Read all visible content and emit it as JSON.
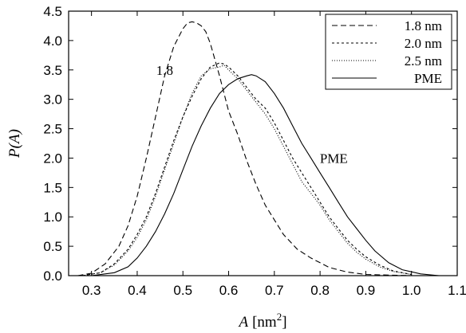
{
  "chart_data": {
    "type": "line",
    "title": "",
    "xlabel_main": "A",
    "xlabel_unit": "[nm",
    "xlabel_sup": "2",
    "xlabel_close": "]",
    "ylabel_main": "P",
    "ylabel_arg": "(A)",
    "xlim": [
      0.25,
      1.1
    ],
    "ylim": [
      0,
      4.5
    ],
    "xticks": [
      0.3,
      0.4,
      0.5,
      0.6,
      0.7,
      0.8,
      0.9,
      1.0,
      1.1
    ],
    "xtick_labels": [
      "0.3",
      "0.4",
      "0.5",
      "0.6",
      "0.7",
      "0.8",
      "0.9",
      "1.0",
      "1.1"
    ],
    "yticks": [
      0.0,
      0.5,
      1.0,
      1.5,
      2.0,
      2.5,
      3.0,
      3.5,
      4.0,
      4.5
    ],
    "ytick_labels": [
      "0.0",
      "0.5",
      "1.0",
      "1.5",
      "2.0",
      "2.5",
      "3.0",
      "3.5",
      "4.0",
      "4.5"
    ],
    "grid": false,
    "legend_position": "top-right",
    "series": [
      {
        "name": "1.8 nm",
        "style": "dashed",
        "x": [
          0.27,
          0.3,
          0.33,
          0.36,
          0.38,
          0.4,
          0.42,
          0.44,
          0.46,
          0.48,
          0.5,
          0.51,
          0.52,
          0.53,
          0.54,
          0.55,
          0.56,
          0.58,
          0.6,
          0.62,
          0.64,
          0.66,
          0.68,
          0.7,
          0.72,
          0.75,
          0.78,
          0.82,
          0.86,
          0.9,
          0.95,
          1.0
        ],
        "y": [
          0.0,
          0.04,
          0.2,
          0.5,
          0.85,
          1.35,
          2.0,
          2.7,
          3.4,
          3.9,
          4.2,
          4.3,
          4.32,
          4.3,
          4.25,
          4.15,
          3.95,
          3.4,
          2.8,
          2.4,
          1.95,
          1.55,
          1.2,
          0.95,
          0.7,
          0.45,
          0.3,
          0.14,
          0.06,
          0.02,
          0.01,
          0.0
        ]
      },
      {
        "name": "2.0 nm",
        "style": "short-dashed",
        "x": [
          0.28,
          0.32,
          0.35,
          0.38,
          0.4,
          0.42,
          0.44,
          0.46,
          0.48,
          0.5,
          0.52,
          0.54,
          0.56,
          0.58,
          0.59,
          0.6,
          0.62,
          0.64,
          0.66,
          0.68,
          0.7,
          0.72,
          0.74,
          0.76,
          0.78,
          0.8,
          0.82,
          0.84,
          0.86,
          0.88,
          0.9,
          0.93,
          0.96,
          1.0
        ],
        "y": [
          0.0,
          0.05,
          0.2,
          0.45,
          0.7,
          1.0,
          1.4,
          1.85,
          2.3,
          2.7,
          3.05,
          3.35,
          3.55,
          3.62,
          3.6,
          3.55,
          3.4,
          3.2,
          3.0,
          2.85,
          2.6,
          2.3,
          2.0,
          1.75,
          1.5,
          1.25,
          1.0,
          0.8,
          0.6,
          0.45,
          0.32,
          0.18,
          0.08,
          0.02
        ]
      },
      {
        "name": "2.5 nm",
        "style": "dotted",
        "x": [
          0.28,
          0.32,
          0.35,
          0.38,
          0.4,
          0.42,
          0.44,
          0.46,
          0.48,
          0.5,
          0.52,
          0.54,
          0.56,
          0.58,
          0.59,
          0.6,
          0.62,
          0.64,
          0.66,
          0.68,
          0.7,
          0.72,
          0.74,
          0.76,
          0.78,
          0.8,
          0.82,
          0.84,
          0.86,
          0.88,
          0.9,
          0.93,
          0.96,
          1.0
        ],
        "y": [
          0.0,
          0.05,
          0.18,
          0.42,
          0.65,
          0.95,
          1.35,
          1.8,
          2.25,
          2.7,
          3.1,
          3.4,
          3.52,
          3.55,
          3.58,
          3.5,
          3.35,
          3.15,
          2.95,
          2.75,
          2.5,
          2.2,
          1.9,
          1.6,
          1.4,
          1.2,
          0.95,
          0.75,
          0.55,
          0.4,
          0.28,
          0.15,
          0.07,
          0.02
        ]
      },
      {
        "name": "PME",
        "style": "solid",
        "x": [
          0.3,
          0.35,
          0.38,
          0.4,
          0.42,
          0.44,
          0.46,
          0.48,
          0.5,
          0.52,
          0.54,
          0.56,
          0.58,
          0.6,
          0.62,
          0.64,
          0.65,
          0.66,
          0.68,
          0.7,
          0.72,
          0.74,
          0.76,
          0.78,
          0.8,
          0.82,
          0.84,
          0.86,
          0.88,
          0.9,
          0.92,
          0.95,
          0.98,
          1.02,
          1.06
        ],
        "y": [
          0.0,
          0.05,
          0.15,
          0.3,
          0.5,
          0.75,
          1.05,
          1.4,
          1.8,
          2.2,
          2.55,
          2.85,
          3.1,
          3.25,
          3.35,
          3.4,
          3.42,
          3.4,
          3.3,
          3.1,
          2.85,
          2.55,
          2.25,
          2.0,
          1.75,
          1.5,
          1.25,
          1.0,
          0.8,
          0.6,
          0.42,
          0.22,
          0.1,
          0.03,
          0.0
        ]
      }
    ],
    "annotations": [
      {
        "text": "1.8",
        "x": 0.46,
        "y": 3.5
      },
      {
        "text": "PME",
        "x": 0.83,
        "y": 2.0
      }
    ]
  }
}
